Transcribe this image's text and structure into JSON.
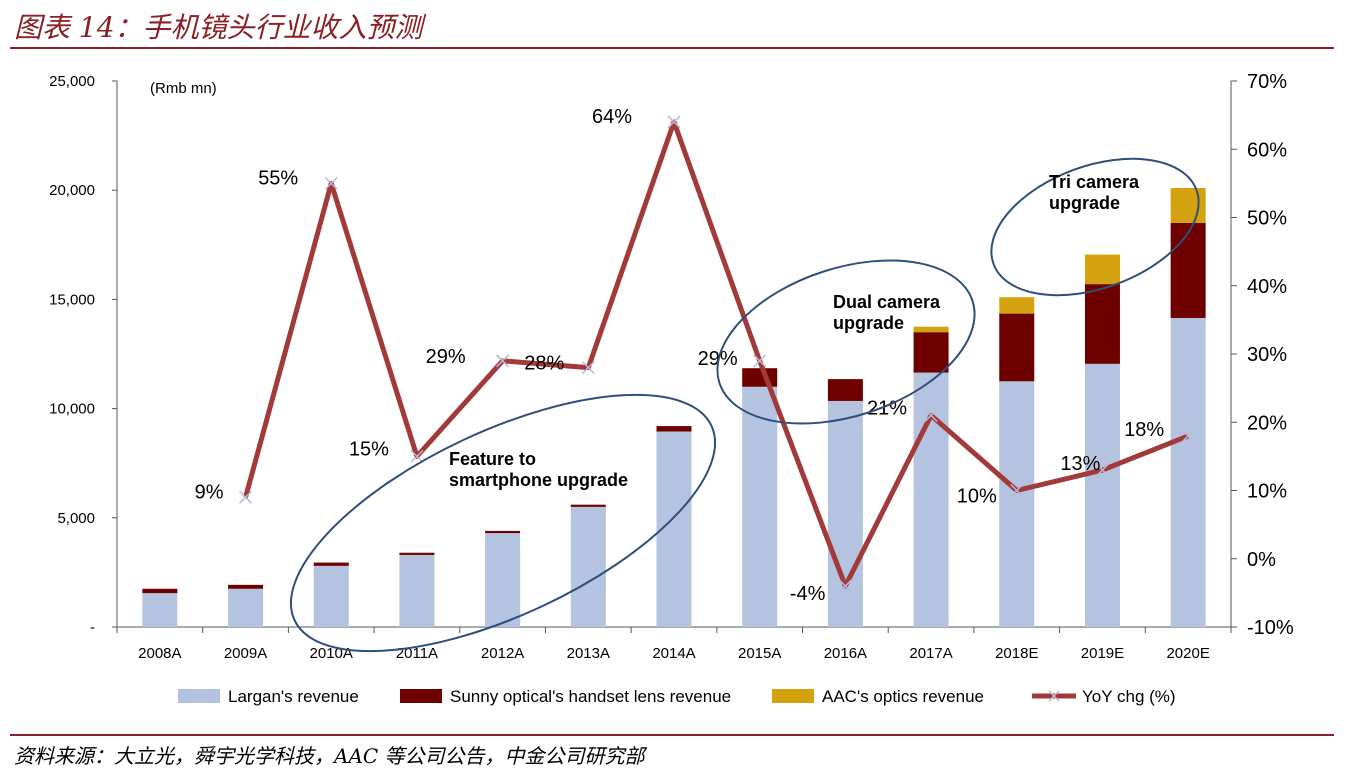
{
  "page": {
    "title": "图表 14：手机镜头行业收入预测",
    "source": "资料来源：大立光，舜宇光学科技，AAC 等公司公告，中金公司研究部"
  },
  "colors": {
    "largan": "#B4C3DF",
    "sunny": "#6E0000",
    "aac": "#D4A20E",
    "yoy": "#A33A3A",
    "circle": "#2E4F7A",
    "rule": "#8B1F24"
  },
  "chart_data": {
    "type": "bar",
    "stacked": true,
    "units_label": "(Rmb mn)",
    "categories": [
      "2008A",
      "2009A",
      "2010A",
      "2011A",
      "2012A",
      "2013A",
      "2014A",
      "2015A",
      "2016A",
      "2017A",
      "2018E",
      "2019E",
      "2020E"
    ],
    "series": [
      {
        "name": "Largan's revenue",
        "values": [
          1550,
          1750,
          2800,
          3300,
          4300,
          5500,
          8950,
          11000,
          10350,
          11650,
          11250,
          12050,
          14150
        ]
      },
      {
        "name": "Sunny optical's handset lens revenue",
        "values": [
          200,
          180,
          150,
          100,
          100,
          100,
          250,
          850,
          1000,
          1850,
          3100,
          3650,
          4350
        ]
      },
      {
        "name": "AAC's optics revenue",
        "values": [
          0,
          0,
          0,
          0,
          0,
          0,
          0,
          0,
          0,
          250,
          750,
          1350,
          1600
        ]
      }
    ],
    "line": {
      "name": "YoY chg (%)",
      "axis": "right",
      "values": [
        null,
        9,
        55,
        15,
        29,
        28,
        64,
        29,
        -4,
        21,
        10,
        13,
        18
      ],
      "labels": [
        "",
        "9%",
        "55%",
        "15%",
        "29%",
        "28%",
        "64%",
        "29%",
        "-4%",
        "21%",
        "10%",
        "13%",
        "18%"
      ]
    },
    "y_left": {
      "ticks": [
        "25,000",
        "20,000",
        "15,000",
        "10,000",
        "5,000",
        "-"
      ],
      "lim": [
        0,
        25000
      ]
    },
    "y_right": {
      "ticks": [
        "70%",
        "60%",
        "50%",
        "40%",
        "30%",
        "20%",
        "10%",
        "0%",
        "-10%"
      ],
      "lim": [
        -10,
        70
      ]
    },
    "annotations": [
      {
        "text": "Feature to smartphone upgrade",
        "lines": [
          "Feature to",
          "smartphone upgrade"
        ]
      },
      {
        "text": "Dual camera upgrade",
        "lines": [
          "Dual camera",
          "upgrade"
        ]
      },
      {
        "text": "Tri camera upgrade",
        "lines": [
          "Tri camera",
          "upgrade"
        ]
      }
    ],
    "legend": [
      "Largan's revenue",
      "Sunny optical's handset lens revenue",
      "AAC's optics revenue",
      "YoY chg (%)"
    ],
    "legend_position": "bottom"
  }
}
